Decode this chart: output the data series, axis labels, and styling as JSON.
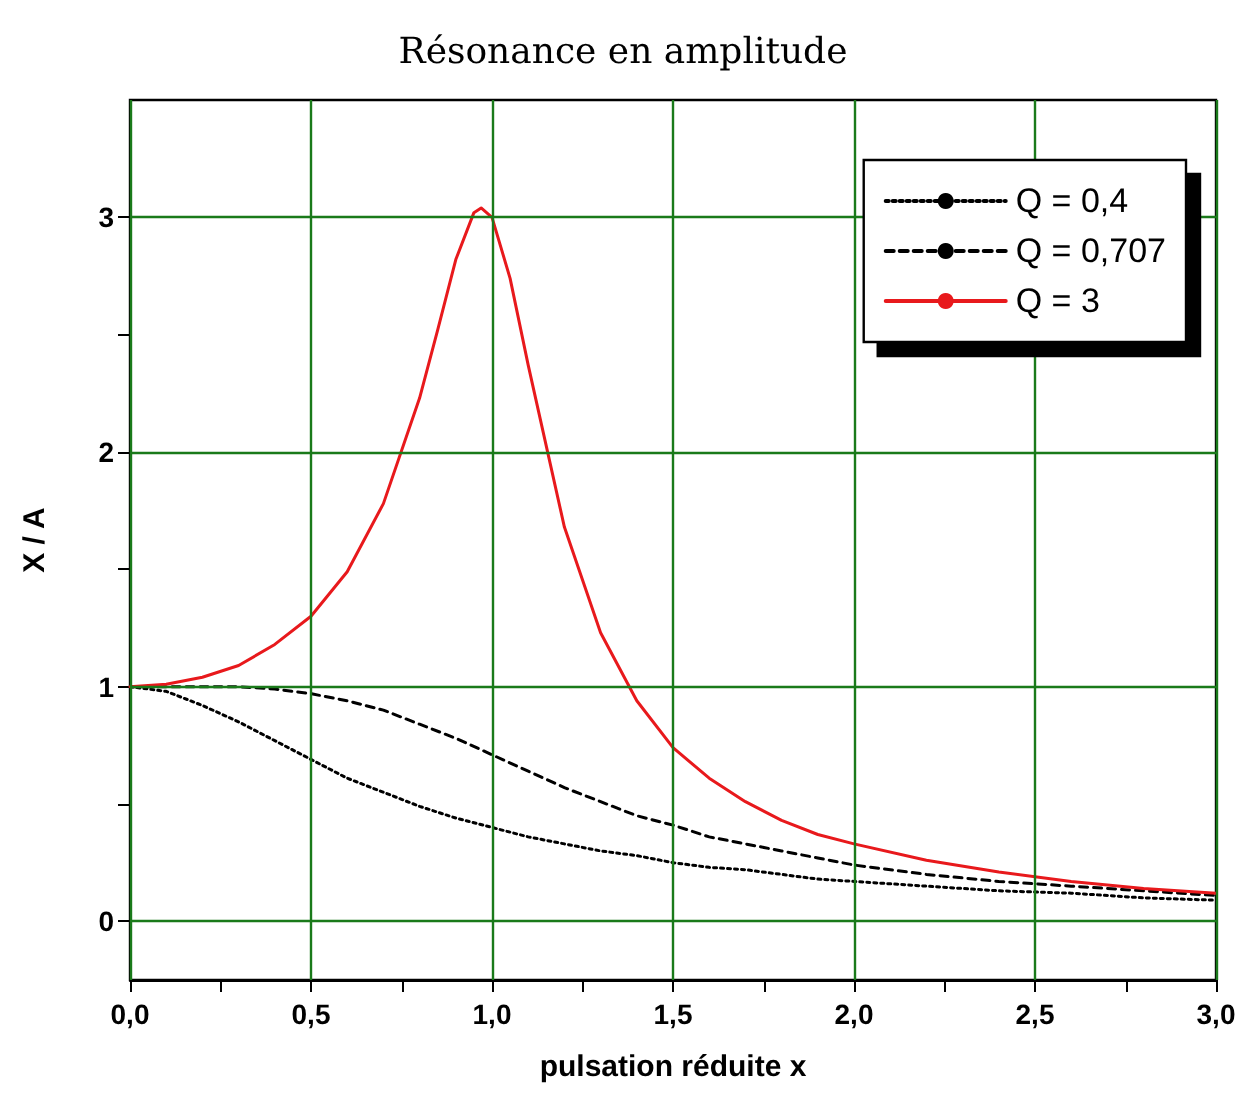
{
  "chart_data": {
    "type": "line",
    "title": "Résonance en amplitude",
    "xlabel": "pulsation réduite x",
    "ylabel": "X / A",
    "x": [
      0,
      0.1,
      0.2,
      0.3,
      0.4,
      0.5,
      0.6,
      0.7,
      0.8,
      0.9,
      1.0,
      1.1,
      1.2,
      1.3,
      1.4,
      1.5,
      1.6,
      1.7,
      1.8,
      1.9,
      2.0,
      2.2,
      2.4,
      2.6,
      2.8,
      3.0
    ],
    "series": [
      {
        "name": "Q = 0,4",
        "color": "#000000",
        "line_style": "dotted",
        "values": [
          1,
          0.98,
          0.92,
          0.85,
          0.77,
          0.69,
          0.61,
          0.55,
          0.49,
          0.44,
          0.4,
          0.36,
          0.33,
          0.3,
          0.28,
          0.25,
          0.23,
          0.22,
          0.2,
          0.18,
          0.17,
          0.15,
          0.13,
          0.12,
          0.1,
          0.09
        ]
      },
      {
        "name": "Q = 0,707",
        "color": "#000000",
        "line_style": "dashed",
        "values": [
          1,
          1.0,
          1.0,
          1.0,
          0.99,
          0.97,
          0.94,
          0.9,
          0.84,
          0.78,
          0.71,
          0.64,
          0.57,
          0.51,
          0.45,
          0.41,
          0.36,
          0.33,
          0.3,
          0.27,
          0.24,
          0.2,
          0.17,
          0.15,
          0.13,
          0.11
        ]
      },
      {
        "name": "Q = 3",
        "color": "#e8191c",
        "line_style": "solid",
        "x": [
          0,
          0.1,
          0.2,
          0.3,
          0.4,
          0.5,
          0.6,
          0.7,
          0.8,
          0.85,
          0.9,
          0.95,
          0.97,
          1.0,
          1.05,
          1.1,
          1.2,
          1.3,
          1.4,
          1.5,
          1.6,
          1.7,
          1.8,
          1.9,
          2.0,
          2.2,
          2.4,
          2.6,
          2.8,
          3.0
        ],
        "values": [
          1,
          1.01,
          1.04,
          1.09,
          1.18,
          1.3,
          1.49,
          1.78,
          2.23,
          2.52,
          2.82,
          3.02,
          3.04,
          3.0,
          2.74,
          2.37,
          1.68,
          1.23,
          0.94,
          0.74,
          0.61,
          0.51,
          0.43,
          0.37,
          0.33,
          0.26,
          0.21,
          0.17,
          0.14,
          0.12
        ]
      }
    ],
    "xlim": [
      0,
      3
    ],
    "ylim": [
      -0.25,
      3.5
    ],
    "xticks": [
      {
        "value": 0,
        "label": "0,0"
      },
      {
        "value": 0.25,
        "label": null
      },
      {
        "value": 0.5,
        "label": "0,5"
      },
      {
        "value": 0.75,
        "label": null
      },
      {
        "value": 1,
        "label": "1,0"
      },
      {
        "value": 1.25,
        "label": null
      },
      {
        "value": 1.5,
        "label": "1,5"
      },
      {
        "value": 1.75,
        "label": null
      },
      {
        "value": 2,
        "label": "2,0"
      },
      {
        "value": 2.25,
        "label": null
      },
      {
        "value": 2.5,
        "label": "2,5"
      },
      {
        "value": 2.75,
        "label": null
      },
      {
        "value": 3,
        "label": "3,0"
      }
    ],
    "yticks": [
      0,
      {
        "value": 0.5,
        "label": null
      },
      1,
      {
        "value": 1.5,
        "label": null
      },
      2,
      {
        "value": 2.5,
        "label": null
      },
      3
    ],
    "grid": true,
    "legend": "top right",
    "marker": "none"
  }
}
